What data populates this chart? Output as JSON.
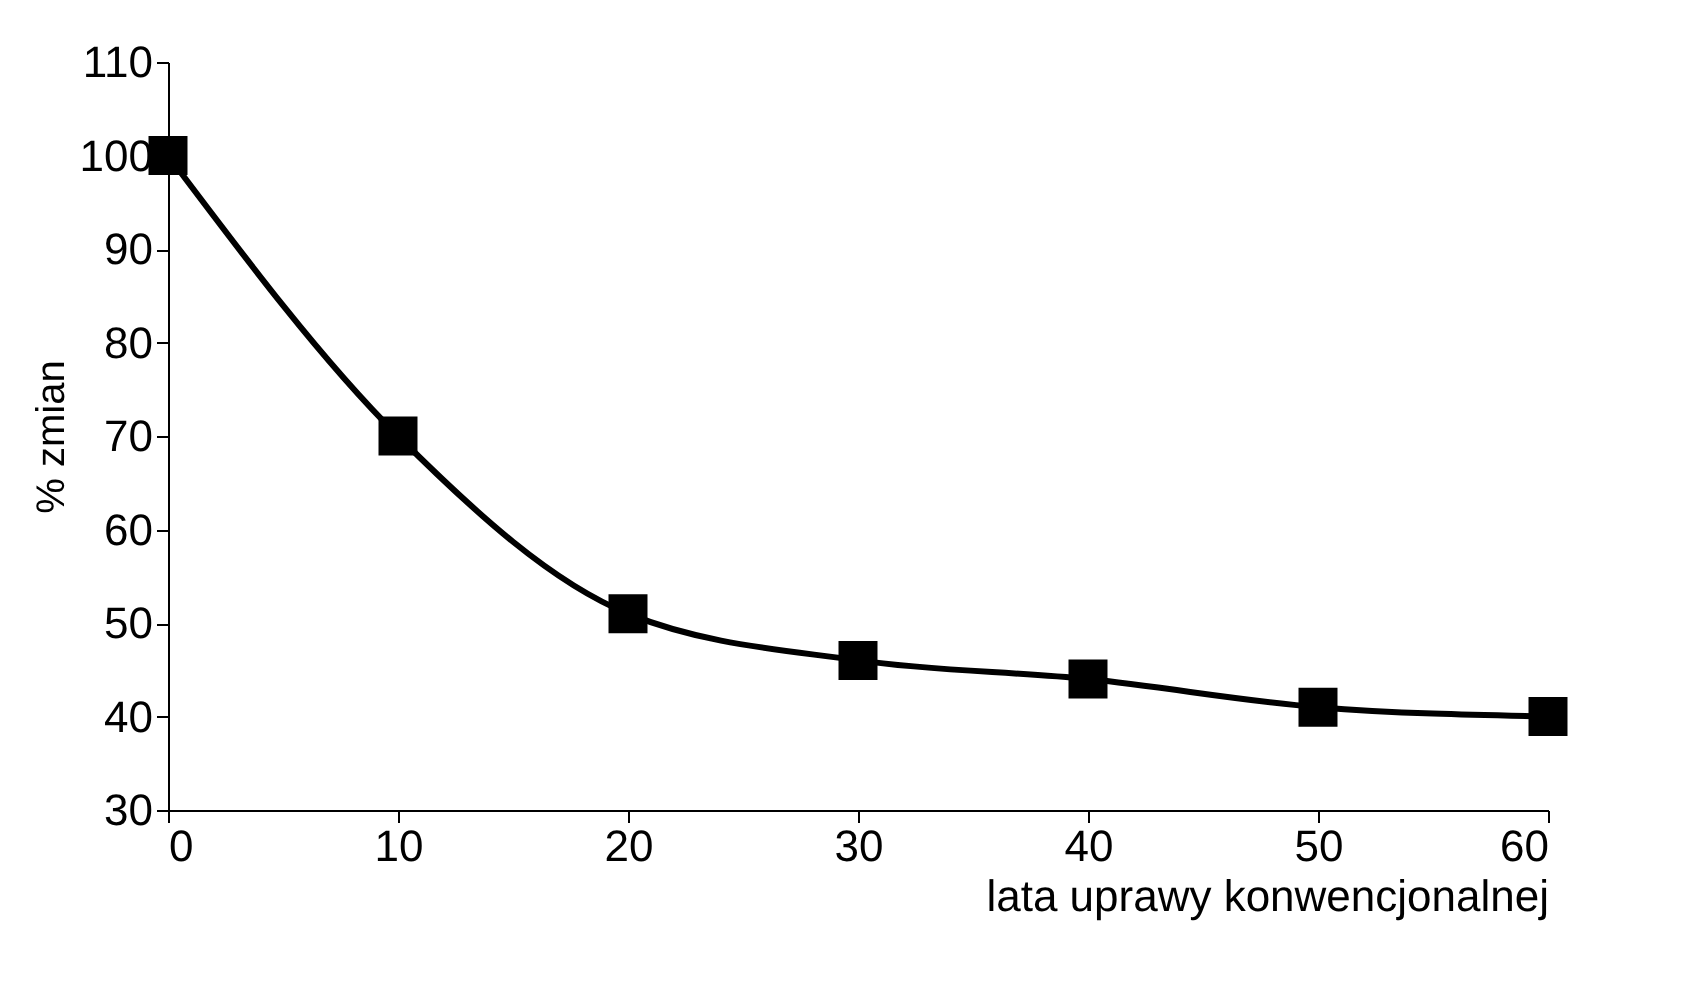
{
  "chart_data": {
    "type": "line",
    "xlabel": "lata uprawy konwencjonalnej",
    "ylabel": "% zmian",
    "x": [
      0,
      10,
      20,
      30,
      40,
      50,
      60
    ],
    "series": [
      {
        "color": "#000000",
        "values": [
          100,
          70,
          51,
          46,
          44,
          41,
          40
        ]
      }
    ],
    "xlim": [
      0,
      60
    ],
    "xticks": [
      0,
      10,
      20,
      30,
      40,
      50,
      60
    ],
    "ylim": [
      30,
      110
    ],
    "yticks": [
      30,
      40,
      50,
      60,
      70,
      80,
      90,
      100,
      110
    ],
    "marker": "square",
    "line_style": "solid",
    "grid": false
  }
}
